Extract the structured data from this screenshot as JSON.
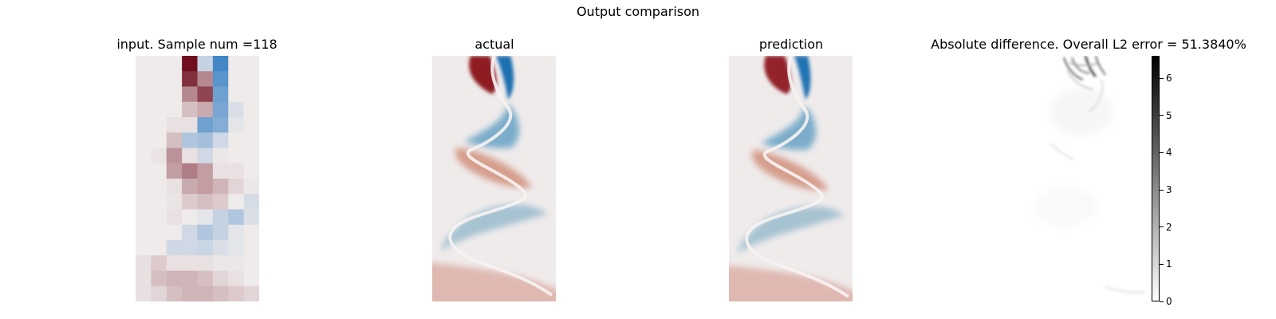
{
  "figure": {
    "suptitle": "Output comparison"
  },
  "chart_data": [
    {
      "type": "heatmap",
      "title": "input. Sample num =118",
      "colormap": "diverging red-white-blue",
      "grid": [
        8,
        16
      ],
      "colors": {
        "positive": "#b4282e",
        "negative": "#2a7bbd",
        "neutral": "#efebeb"
      }
    },
    {
      "type": "heatmap",
      "title": "actual",
      "colormap": "diverging red-white-blue",
      "colors": {
        "positive": "#b4282e",
        "negative": "#2a7bbd",
        "neutral": "#efebeb"
      }
    },
    {
      "type": "heatmap",
      "title": "prediction",
      "colormap": "diverging red-white-blue",
      "colors": {
        "positive": "#b4282e",
        "negative": "#2a7bbd",
        "neutral": "#efebeb"
      }
    },
    {
      "type": "heatmap",
      "title": "Absolute difference. Overall L2 error = 51.3840%",
      "colormap": "greys",
      "colorbar": {
        "range": [
          0,
          6.6
        ],
        "ticks": [
          "0",
          "1",
          "2",
          "3",
          "4",
          "5",
          "6"
        ]
      }
    }
  ]
}
